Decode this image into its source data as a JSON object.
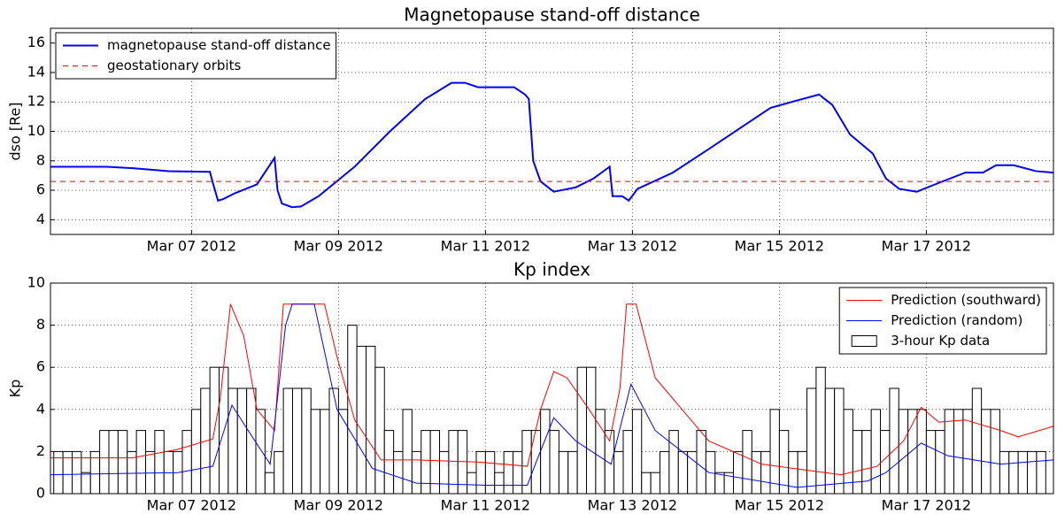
{
  "chart_data": [
    {
      "type": "line",
      "title": "Magnetopause stand-off distance",
      "ylabel": "dso [Re]",
      "xlim": [
        5.08,
        18.73
      ],
      "ylim": [
        3,
        17
      ],
      "xticks": [
        {
          "value": 7,
          "label": "Mar 07 2012"
        },
        {
          "value": 9,
          "label": "Mar 09 2012"
        },
        {
          "value": 11,
          "label": "Mar 11 2012"
        },
        {
          "value": 13,
          "label": "Mar 13 2012"
        },
        {
          "value": 15,
          "label": "Mar 15 2012"
        },
        {
          "value": 17,
          "label": "Mar 17 2012"
        }
      ],
      "yticks": [
        4,
        6,
        8,
        10,
        12,
        14,
        16
      ],
      "grid": true,
      "legend": "upper left",
      "series": [
        {
          "name": "magnetopause stand-off distance",
          "color": "#0000ff",
          "kind": "line",
          "x": [
            5.08,
            5.84,
            6.2,
            6.69,
            7.25,
            7.29,
            7.36,
            7.43,
            7.59,
            7.89,
            8.13,
            8.17,
            8.23,
            8.37,
            8.49,
            8.73,
            9.22,
            9.7,
            10.18,
            10.54,
            10.72,
            10.9,
            11.39,
            11.54,
            11.59,
            11.65,
            11.75,
            11.93,
            12.23,
            12.47,
            12.69,
            12.73,
            12.86,
            12.95,
            13.07,
            13.55,
            14.04,
            14.52,
            14.88,
            15.24,
            15.54,
            15.72,
            15.96,
            16.27,
            16.45,
            16.63,
            16.87,
            17.17,
            17.53,
            17.77,
            17.95,
            18.19,
            18.49,
            18.73
          ],
          "values": [
            7.6,
            7.6,
            7.5,
            7.3,
            7.25,
            6.5,
            5.3,
            5.4,
            5.8,
            6.4,
            8.2,
            6.0,
            5.1,
            4.85,
            4.9,
            5.6,
            7.6,
            10.0,
            12.2,
            13.3,
            13.3,
            13.0,
            13.0,
            12.5,
            12.2,
            8.0,
            6.6,
            5.9,
            6.2,
            6.8,
            7.6,
            5.6,
            5.6,
            5.3,
            6.1,
            7.2,
            8.8,
            10.4,
            11.6,
            12.1,
            12.5,
            11.8,
            9.8,
            8.5,
            6.8,
            6.1,
            5.9,
            6.5,
            7.2,
            7.2,
            7.7,
            7.7,
            7.3,
            7.2
          ]
        }
      ],
      "hlines": [
        {
          "name": "geostationary orbits",
          "color": "#ff0000",
          "value": 6.6
        }
      ]
    },
    {
      "type": "mixed",
      "title": "Kp index",
      "ylabel": "Kp",
      "xlim": [
        5.08,
        18.73
      ],
      "ylim": [
        0,
        10
      ],
      "xticks": [
        {
          "value": 7,
          "label": "Mar 07 2012"
        },
        {
          "value": 9,
          "label": "Mar 09 2012"
        },
        {
          "value": 11,
          "label": "Mar 11 2012"
        },
        {
          "value": 13,
          "label": "Mar 13 2012"
        },
        {
          "value": 15,
          "label": "Mar 15 2012"
        },
        {
          "value": 17,
          "label": "Mar 17 2012"
        }
      ],
      "yticks": [
        0,
        2,
        4,
        6,
        8,
        10
      ],
      "grid": true,
      "legend": "upper right",
      "series": [
        {
          "name": "Prediction (southward)",
          "color": "#ff0000",
          "kind": "line",
          "x": [
            5.08,
            6.2,
            6.81,
            7.29,
            7.39,
            7.53,
            7.71,
            7.89,
            8.13,
            8.25,
            8.81,
            8.98,
            9.22,
            9.58,
            10.06,
            10.9,
            11.57,
            11.75,
            11.93,
            12.11,
            12.41,
            12.69,
            12.83,
            12.92,
            13.05,
            13.31,
            14.04,
            14.76,
            15.84,
            16.33,
            16.69,
            16.93,
            17.17,
            17.53,
            18.01,
            18.25,
            18.73
          ],
          "values": [
            1.7,
            1.7,
            2.1,
            2.6,
            4.5,
            9.0,
            7.5,
            4.0,
            3.0,
            9.0,
            9.0,
            6.5,
            3.5,
            1.6,
            1.6,
            1.5,
            1.3,
            4.0,
            5.8,
            5.5,
            4.0,
            2.5,
            5.0,
            9.0,
            9.0,
            5.5,
            2.5,
            1.4,
            0.9,
            1.3,
            2.5,
            4.1,
            3.4,
            3.5,
            3.0,
            2.7,
            3.2
          ]
        },
        {
          "name": "Prediction (random)",
          "color": "#0000ff",
          "kind": "line",
          "x": [
            5.08,
            6.81,
            7.29,
            7.55,
            7.77,
            8.07,
            8.28,
            8.37,
            8.67,
            8.98,
            9.46,
            10.06,
            11.02,
            11.57,
            11.69,
            11.93,
            12.23,
            12.71,
            12.98,
            13.31,
            14.04,
            15.24,
            16.2,
            16.45,
            16.93,
            17.29,
            18.01,
            18.73
          ],
          "values": [
            0.9,
            1.0,
            1.3,
            4.2,
            3.0,
            1.4,
            8.0,
            9.0,
            9.0,
            4.0,
            1.2,
            0.5,
            0.4,
            0.4,
            1.5,
            3.6,
            2.5,
            1.4,
            5.2,
            3.0,
            1.0,
            0.3,
            0.6,
            1.0,
            2.4,
            1.8,
            1.4,
            1.6
          ]
        },
        {
          "name": "3-hour Kp data",
          "color": "#000000",
          "kind": "bar",
          "x": [
            5.125,
            5.25,
            5.375,
            5.5,
            5.625,
            5.75,
            5.875,
            6,
            6.125,
            6.25,
            6.375,
            6.5,
            6.625,
            6.75,
            6.875,
            7,
            7.125,
            7.25,
            7.375,
            7.5,
            7.625,
            7.75,
            7.875,
            8,
            8.125,
            8.25,
            8.375,
            8.5,
            8.625,
            8.75,
            8.875,
            9,
            9.125,
            9.25,
            9.375,
            9.5,
            9.625,
            9.75,
            9.875,
            10,
            10.125,
            10.25,
            10.375,
            10.5,
            10.625,
            10.75,
            10.875,
            11,
            11.125,
            11.25,
            11.375,
            11.5,
            11.625,
            11.75,
            11.875,
            12,
            12.125,
            12.25,
            12.375,
            12.5,
            12.625,
            12.75,
            12.875,
            13,
            13.125,
            13.25,
            13.375,
            13.5,
            13.625,
            13.75,
            13.875,
            14,
            14.125,
            14.25,
            14.375,
            14.5,
            14.625,
            14.75,
            14.875,
            15,
            15.125,
            15.25,
            15.375,
            15.5,
            15.625,
            15.75,
            15.875,
            16,
            16.125,
            16.25,
            16.375,
            16.5,
            16.625,
            16.75,
            16.875,
            17,
            17.125,
            17.25,
            17.375,
            17.5,
            17.625,
            17.75,
            17.875,
            18,
            18.125,
            18.25,
            18.375,
            18.5
          ],
          "values": [
            2,
            2,
            2,
            1,
            2,
            3,
            3,
            3,
            2,
            3,
            2,
            3,
            2,
            2,
            3,
            4,
            5,
            6,
            6,
            5,
            5,
            5,
            4,
            1,
            2,
            5,
            5,
            5,
            4,
            4,
            5,
            4,
            8,
            7,
            7,
            6,
            3,
            2,
            4,
            2,
            3,
            3,
            2,
            3,
            3,
            1,
            2,
            2,
            1,
            2,
            2,
            3,
            3,
            4,
            3,
            2,
            2,
            6,
            6,
            4,
            3,
            2,
            3,
            4,
            1,
            1,
            2,
            3,
            2,
            2,
            3,
            2,
            1,
            1,
            2,
            3,
            2,
            2,
            4,
            3,
            2,
            2,
            5,
            6,
            5,
            5,
            4,
            3,
            3,
            4,
            3,
            5,
            4,
            4,
            4,
            3,
            3,
            4,
            4,
            4,
            5,
            4,
            4,
            2,
            2,
            2,
            2,
            2
          ]
        }
      ]
    }
  ]
}
